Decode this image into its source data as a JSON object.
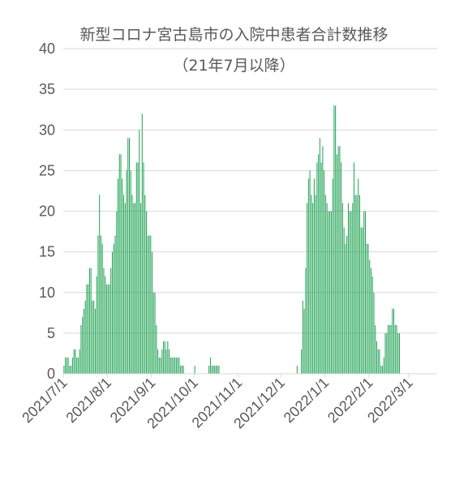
{
  "chart_data": {
    "type": "bar",
    "title": "新型コロナ宮古島市の入院中患者合計数推移",
    "subtitle": "（21年7月以降）",
    "ylim": [
      0,
      40
    ],
    "yticks": [
      0,
      5,
      10,
      15,
      20,
      25,
      30,
      35,
      40
    ],
    "xlim": [
      "2021-07-01",
      "2022-03-20"
    ],
    "xtick_labels": [
      "2021/7/1",
      "2021/8/1",
      "2021/9/1",
      "2021/10/1",
      "2021/11/1",
      "2021/12/1",
      "2022/1/1",
      "2022/2/1",
      "2022/3/1"
    ],
    "grid": true,
    "bar_color": "#1fa253",
    "start_date": "2021-07-01",
    "values": [
      1,
      2,
      2,
      2,
      1,
      1,
      2,
      3,
      3,
      2,
      2,
      3,
      6,
      7,
      8,
      9,
      11,
      11,
      13,
      13,
      9,
      9,
      8,
      12,
      17,
      22,
      17,
      16,
      13,
      12,
      11,
      11,
      11,
      13,
      15,
      16,
      17,
      20,
      24,
      27,
      27,
      24,
      22,
      21,
      25,
      29,
      29,
      25,
      22,
      21,
      21,
      26,
      26,
      30,
      21,
      32,
      26,
      22,
      20,
      17,
      17,
      17,
      15,
      10,
      10,
      6,
      3,
      2,
      2,
      3,
      4,
      4,
      3,
      4,
      3,
      2,
      2,
      2,
      2,
      2,
      2,
      2,
      1,
      1,
      1,
      0,
      0,
      0,
      0,
      0,
      0,
      0,
      1,
      0,
      0,
      0,
      0,
      0,
      0,
      0,
      0,
      0,
      1,
      2,
      1,
      1,
      1,
      1,
      1,
      1,
      0,
      0,
      0,
      0,
      0,
      0,
      0,
      0,
      0,
      0,
      0,
      0,
      0,
      0,
      0,
      0,
      0,
      0,
      0,
      0,
      0,
      0,
      0,
      0,
      0,
      0,
      0,
      0,
      0,
      0,
      0,
      0,
      0,
      0,
      0,
      0,
      0,
      0,
      0,
      0,
      0,
      0,
      0,
      0,
      0,
      0,
      0,
      0,
      0,
      0,
      0,
      0,
      0,
      0,
      1,
      0,
      0,
      3,
      9,
      8,
      13,
      21,
      24,
      25,
      22,
      21,
      24,
      22,
      26,
      27,
      29,
      26,
      28,
      25,
      22,
      21,
      20,
      20,
      20,
      24,
      33,
      33,
      27,
      28,
      28,
      26,
      21,
      18,
      16,
      17,
      21,
      20,
      20,
      21,
      26,
      22,
      22,
      24,
      22,
      18,
      18,
      20,
      20,
      16,
      16,
      14,
      13,
      12,
      10,
      6,
      4,
      3,
      3,
      1,
      1,
      2,
      5,
      5,
      6,
      6,
      6,
      8,
      8,
      6,
      6,
      5,
      5
    ]
  }
}
